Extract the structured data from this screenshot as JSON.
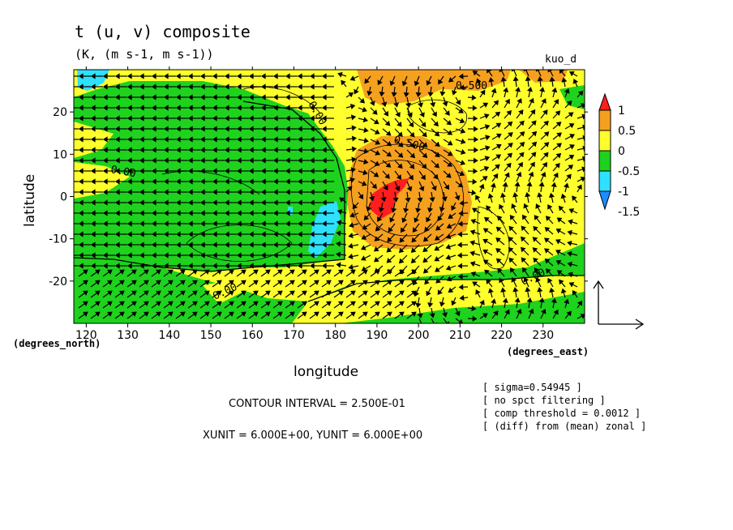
{
  "chart_data": {
    "type": "heatmap",
    "title": "t (u, v) composite",
    "subtitle": "(K, (m s-1, m s-1))",
    "dataset_label": "kuo_d",
    "xlabel": "longitude",
    "ylabel": "latitude",
    "x_unit_label": "(degrees_east)",
    "y_unit_label": "(degrees_north)",
    "xlim": [
      117,
      240
    ],
    "ylim": [
      -30,
      30
    ],
    "x_ticks": [
      120,
      130,
      140,
      150,
      160,
      170,
      180,
      190,
      200,
      210,
      220,
      230
    ],
    "y_ticks": [
      20,
      10,
      0,
      -10,
      -20
    ],
    "colorbar": {
      "levels": [
        "1",
        "0.5",
        "0",
        "-0.5",
        "-1",
        "-1.5"
      ],
      "colors": [
        "#ff1e1e",
        "#f5a01e",
        "#ffff2d",
        "#1ed21e",
        "#2de1ff",
        "#1e8cff"
      ]
    },
    "contour_labels": [
      "0.500",
      "0.00",
      "0.500",
      "0.00",
      "0.00",
      "0.00"
    ],
    "vectors": "wind vectors (u, v) overlaid on grid",
    "legend": "reference vector at right of plot"
  },
  "footer": {
    "contour_interval": "CONTOUR INTERVAL = 2.500E-01",
    "units": "XUNIT = 6.000E+00, YUNIT = 6.000E+00"
  },
  "notes": [
    "[ sigma=0.54945 ]",
    "[ no spct filtering ]",
    "[ comp threshold = 0.0012 ]",
    "[ (diff) from (mean) zonal ]"
  ]
}
